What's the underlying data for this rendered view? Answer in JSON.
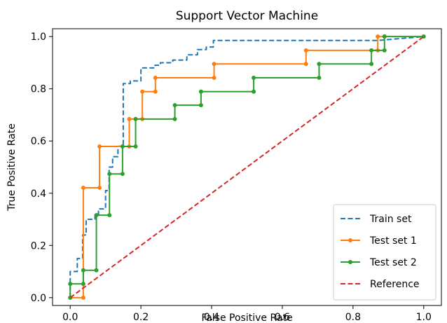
{
  "chart_data": {
    "type": "line",
    "title": "Support Vector Machine",
    "xlabel": "False Positive Rate",
    "ylabel": "True Positive Rate",
    "xlim": [
      -0.05,
      1.05
    ],
    "ylim": [
      -0.03,
      1.03
    ],
    "xticks": [
      "0.0",
      "0.2",
      "0.4",
      "0.6",
      "0.8",
      "1.0"
    ],
    "yticks": [
      "0.0",
      "0.2",
      "0.4",
      "0.6",
      "0.8",
      "1.0"
    ],
    "grid": false,
    "legend_position": "lower-right",
    "series": [
      {
        "name": "Train set",
        "color": "#1f77b4",
        "style": "dashed",
        "markers": false,
        "x": [
          0.0,
          0.0,
          0.02,
          0.02,
          0.035,
          0.035,
          0.045,
          0.045,
          0.07,
          0.07,
          0.08,
          0.08,
          0.1,
          0.1,
          0.11,
          0.11,
          0.12,
          0.12,
          0.135,
          0.135,
          0.15,
          0.15,
          0.17,
          0.17,
          0.2,
          0.2,
          0.24,
          0.24,
          0.255,
          0.255,
          0.29,
          0.29,
          0.33,
          0.33,
          0.36,
          0.36,
          0.385,
          0.385,
          0.405,
          0.405,
          0.87,
          1.0
        ],
        "y": [
          0.0,
          0.1,
          0.1,
          0.15,
          0.15,
          0.24,
          0.24,
          0.3,
          0.3,
          0.32,
          0.32,
          0.34,
          0.34,
          0.41,
          0.41,
          0.5,
          0.5,
          0.54,
          0.54,
          0.58,
          0.58,
          0.82,
          0.82,
          0.83,
          0.83,
          0.88,
          0.88,
          0.89,
          0.89,
          0.9,
          0.9,
          0.91,
          0.91,
          0.93,
          0.93,
          0.95,
          0.95,
          0.96,
          0.96,
          0.985,
          0.985,
          1.0
        ]
      },
      {
        "name": "Test set 1",
        "color": "#ff7f0e",
        "style": "solid",
        "markers": true,
        "x": [
          0.0,
          0.037,
          0.037,
          0.083,
          0.083,
          0.148,
          0.167,
          0.167,
          0.185,
          0.204,
          0.204,
          0.241,
          0.241,
          0.407,
          0.407,
          0.667,
          0.667,
          0.87,
          0.87,
          0.889,
          0.889
        ],
        "y": [
          0.0,
          0.0,
          0.421,
          0.421,
          0.579,
          0.579,
          0.579,
          0.684,
          0.684,
          0.684,
          0.789,
          0.789,
          0.842,
          0.842,
          0.895,
          0.895,
          0.947,
          0.947,
          1.0,
          1.0,
          1.0
        ]
      },
      {
        "name": "Test set 2",
        "color": "#2ca02c",
        "style": "solid",
        "markers": true,
        "x": [
          0.0,
          0.0,
          0.037,
          0.037,
          0.074,
          0.074,
          0.111,
          0.111,
          0.148,
          0.148,
          0.185,
          0.185,
          0.296,
          0.296,
          0.37,
          0.37,
          0.519,
          0.519,
          0.704,
          0.704,
          0.852,
          0.852,
          0.889,
          0.889,
          1.0
        ],
        "y": [
          0.0,
          0.053,
          0.053,
          0.105,
          0.105,
          0.316,
          0.316,
          0.474,
          0.474,
          0.579,
          0.579,
          0.684,
          0.684,
          0.737,
          0.737,
          0.789,
          0.789,
          0.842,
          0.842,
          0.895,
          0.895,
          0.947,
          0.947,
          1.0,
          1.0
        ]
      },
      {
        "name": "Reference",
        "color": "#d62728",
        "style": "dashed",
        "markers": false,
        "x": [
          0.0,
          1.0
        ],
        "y": [
          0.0,
          1.0
        ]
      }
    ]
  }
}
